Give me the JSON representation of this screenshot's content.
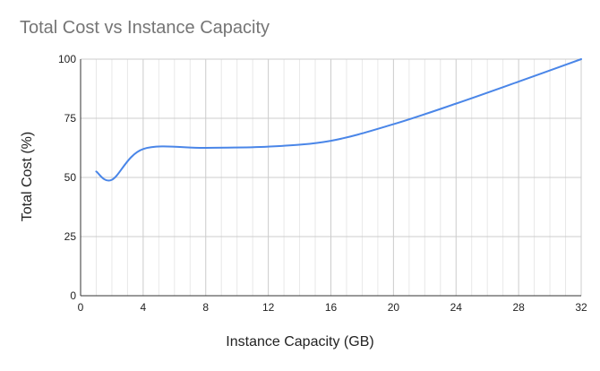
{
  "chart_data": {
    "type": "line",
    "title": "Total Cost vs Instance Capacity",
    "xlabel": "Instance Capacity (GB)",
    "ylabel": "Total Cost (%)",
    "xlim": [
      0,
      32
    ],
    "ylim": [
      0,
      100
    ],
    "x_ticks": [
      0,
      4,
      8,
      12,
      16,
      20,
      24,
      28,
      32
    ],
    "y_ticks": [
      0,
      25,
      50,
      75,
      100
    ],
    "grid": true,
    "legend": "none",
    "series": [
      {
        "color": "#4a86e8",
        "points": [
          [
            1,
            52.5
          ],
          [
            2,
            49
          ],
          [
            4,
            62
          ],
          [
            8,
            62.5
          ],
          [
            12,
            63
          ],
          [
            16,
            65.5
          ],
          [
            20,
            72.5
          ],
          [
            24,
            81.2
          ],
          [
            28,
            90.5
          ],
          [
            32,
            100
          ]
        ]
      }
    ]
  }
}
